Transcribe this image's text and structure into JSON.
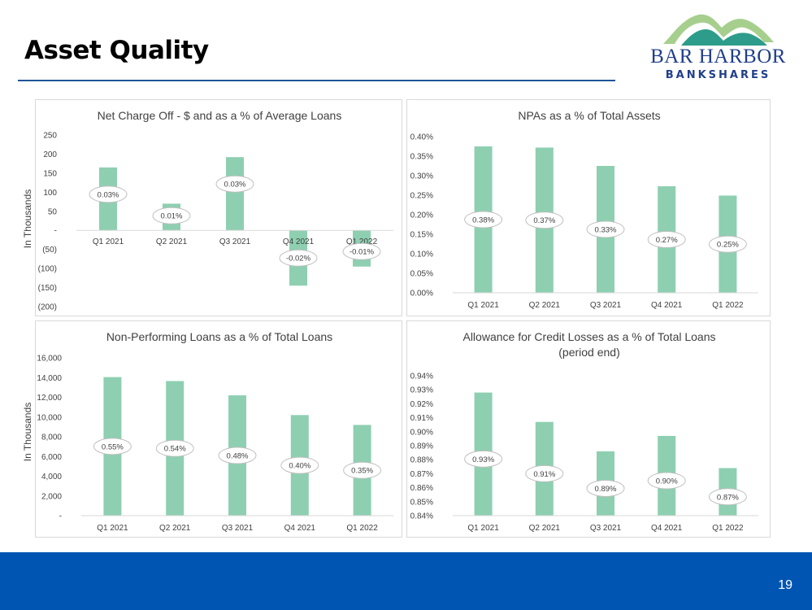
{
  "page": {
    "title": "Asset Quality",
    "page_number": "19"
  },
  "logo": {
    "line1": "BAR HARBOR",
    "line2": "BANKSHARES"
  },
  "colors": {
    "bar": "#8ecfb1",
    "title_rule": "#1f5597",
    "footer": "#0055b3",
    "logo_text": "#1f3f8a",
    "logo_mountain_outer": "#a6cf8e",
    "logo_mountain_inner": "#2e9c8a"
  },
  "y_axis_titles": {
    "left_top": "In Thousands",
    "left_bottom": "In Thousands"
  },
  "chart_data": [
    {
      "type": "bar",
      "title": [
        "Net Charge Off - $ and as a % of Average Loans"
      ],
      "ylabel": "In Thousands",
      "categories": [
        "Q1 2021",
        "Q2 2021",
        "Q3 2021",
        "Q4 2021",
        "Q1 2022"
      ],
      "values": [
        165,
        70,
        192,
        -145,
        -95
      ],
      "labels": [
        "0.03%",
        "0.01%",
        "0.03%",
        "-0.02%",
        "-0.01%"
      ],
      "ylim": [
        -200,
        250
      ],
      "yticks": [
        "250",
        "200",
        "150",
        "100",
        "50",
        "-",
        "(50)",
        "(100)",
        "(150)",
        "(200)"
      ],
      "category_axis": "zero-line",
      "grid": false,
      "legend": "none"
    },
    {
      "type": "bar",
      "title": [
        "NPAs as a % of Total Assets"
      ],
      "ylabel": "",
      "categories": [
        "Q1 2021",
        "Q2 2021",
        "Q3 2021",
        "Q4 2021",
        "Q1 2022"
      ],
      "values": [
        0.375,
        0.372,
        0.325,
        0.273,
        0.249
      ],
      "labels": [
        "0.38%",
        "0.37%",
        "0.33%",
        "0.27%",
        "0.25%"
      ],
      "ylim": [
        0,
        0.4
      ],
      "yticks": [
        "0.40%",
        "0.35%",
        "0.30%",
        "0.25%",
        "0.20%",
        "0.15%",
        "0.10%",
        "0.05%",
        "0.00%"
      ],
      "category_axis": "bottom",
      "grid": false,
      "legend": "none"
    },
    {
      "type": "bar",
      "title": [
        "Non-Performing Loans as a % of Total Loans"
      ],
      "ylabel": "In Thousands",
      "categories": [
        "Q1 2021",
        "Q2 2021",
        "Q3 2021",
        "Q4 2021",
        "Q1 2022"
      ],
      "values": [
        14050,
        13650,
        12200,
        10200,
        9200
      ],
      "labels": [
        "0.55%",
        "0.54%",
        "0.48%",
        "0.40%",
        "0.35%"
      ],
      "ylim": [
        0,
        16000
      ],
      "yticks": [
        "16,000",
        "14,000",
        "12,000",
        "10,000",
        "8,000",
        "6,000",
        "4,000",
        "2,000",
        "-"
      ],
      "category_axis": "bottom",
      "grid": false,
      "legend": "none"
    },
    {
      "type": "bar",
      "title": [
        "Allowance for Credit Losses as a % of Total Loans",
        "(period end)"
      ],
      "ylabel": "",
      "categories": [
        "Q1 2021",
        "Q2 2021",
        "Q3 2021",
        "Q4 2021",
        "Q1 2022"
      ],
      "values": [
        0.928,
        0.907,
        0.886,
        0.897,
        0.874
      ],
      "labels": [
        "0.93%",
        "0.91%",
        "0.89%",
        "0.90%",
        "0.87%"
      ],
      "ylim": [
        0.84,
        0.94
      ],
      "yticks": [
        "0.94%",
        "0.93%",
        "0.92%",
        "0.91%",
        "0.90%",
        "0.89%",
        "0.88%",
        "0.87%",
        "0.86%",
        "0.85%",
        "0.84%"
      ],
      "category_axis": "bottom",
      "grid": false,
      "legend": "none"
    }
  ]
}
